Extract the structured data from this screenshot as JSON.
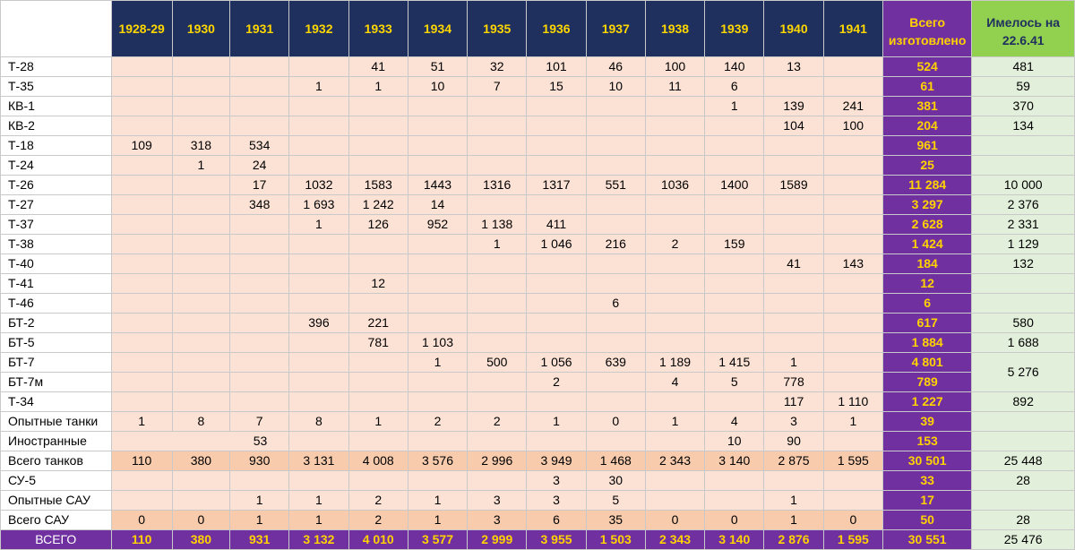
{
  "table": {
    "header_years": [
      "1928-29",
      "1930",
      "1931",
      "1932",
      "1933",
      "1934",
      "1935",
      "1936",
      "1937",
      "1938",
      "1939",
      "1940",
      "1941"
    ],
    "header_total": [
      "Всего",
      "изготовлено"
    ],
    "header_available": [
      "Имелось на",
      "22.6.41"
    ],
    "rows": [
      {
        "label": "Т-28",
        "cells": [
          "",
          "",
          "",
          "",
          "41",
          "51",
          "32",
          "101",
          "46",
          "100",
          "140",
          "13",
          ""
        ],
        "total": "524",
        "available": "481"
      },
      {
        "label": "Т-35",
        "cells": [
          "",
          "",
          "",
          "1",
          "1",
          "10",
          "7",
          "15",
          "10",
          "11",
          "6",
          "",
          ""
        ],
        "total": "61",
        "available": "59"
      },
      {
        "label": "КВ-1",
        "cells": [
          "",
          "",
          "",
          "",
          "",
          "",
          "",
          "",
          "",
          "",
          "1",
          "139",
          "241"
        ],
        "total": "381",
        "available": "370"
      },
      {
        "label": "КВ-2",
        "cells": [
          "",
          "",
          "",
          "",
          "",
          "",
          "",
          "",
          "",
          "",
          "",
          "104",
          "100"
        ],
        "total": "204",
        "available": "134"
      },
      {
        "label": "Т-18",
        "cells": [
          "109",
          "318",
          "534",
          "",
          "",
          "",
          "",
          "",
          "",
          "",
          "",
          "",
          ""
        ],
        "total": "961",
        "available": ""
      },
      {
        "label": "Т-24",
        "cells": [
          "",
          "1",
          "24",
          "",
          "",
          "",
          "",
          "",
          "",
          "",
          "",
          "",
          ""
        ],
        "total": "25",
        "available": ""
      },
      {
        "label": "Т-26",
        "cells": [
          "",
          "",
          "17",
          "1032",
          "1583",
          "1443",
          "1316",
          "1317",
          "551",
          "1036",
          "1400",
          "1589",
          ""
        ],
        "total": "11 284",
        "available": "10 000"
      },
      {
        "label": "Т-27",
        "cells": [
          "",
          "",
          "348",
          "1 693",
          "1 242",
          "14",
          "",
          "",
          "",
          "",
          "",
          "",
          ""
        ],
        "total": "3 297",
        "available": "2 376"
      },
      {
        "label": "Т-37",
        "cells": [
          "",
          "",
          "",
          "1",
          "126",
          "952",
          "1 138",
          "411",
          "",
          "",
          "",
          "",
          ""
        ],
        "total": "2 628",
        "available": "2 331"
      },
      {
        "label": "Т-38",
        "cells": [
          "",
          "",
          "",
          "",
          "",
          "",
          "1",
          "1 046",
          "216",
          "2",
          "159",
          "",
          ""
        ],
        "total": "1 424",
        "available": "1 129"
      },
      {
        "label": "Т-40",
        "cells": [
          "",
          "",
          "",
          "",
          "",
          "",
          "",
          "",
          "",
          "",
          "",
          "41",
          "143"
        ],
        "total": "184",
        "available": "132"
      },
      {
        "label": "Т-41",
        "cells": [
          "",
          "",
          "",
          "",
          "12",
          "",
          "",
          "",
          "",
          "",
          "",
          "",
          ""
        ],
        "total": "12",
        "available": ""
      },
      {
        "label": "Т-46",
        "cells": [
          "",
          "",
          "",
          "",
          "",
          "",
          "",
          "",
          "6",
          "",
          "",
          "",
          ""
        ],
        "total": "6",
        "available": ""
      },
      {
        "label": "БТ-2",
        "cells": [
          "",
          "",
          "",
          "396",
          "221",
          "",
          "",
          "",
          "",
          "",
          "",
          "",
          ""
        ],
        "total": "617",
        "available": "580"
      },
      {
        "label": "БТ-5",
        "cells": [
          "",
          "",
          "",
          "",
          "781",
          "1 103",
          "",
          "",
          "",
          "",
          "",
          "",
          ""
        ],
        "total": "1 884",
        "available": "1 688"
      },
      {
        "label": "БТ-7",
        "cells": [
          "",
          "",
          "",
          "",
          "",
          "1",
          "500",
          "1 056",
          "639",
          "1 189",
          "1 415",
          "1",
          ""
        ],
        "total": "4 801",
        "available": "5 276"
      },
      {
        "label": "БТ-7м",
        "cells": [
          "",
          "",
          "",
          "",
          "",
          "",
          "",
          "2",
          "",
          "4",
          "5",
          "778",
          ""
        ],
        "total": "789",
        "available": null
      },
      {
        "label": "Т-34",
        "cells": [
          "",
          "",
          "",
          "",
          "",
          "",
          "",
          "",
          "",
          "",
          "",
          "117",
          "1 110"
        ],
        "total": "1 227",
        "available": "892"
      },
      {
        "label": "Опытные танки",
        "cells": [
          "1",
          "8",
          "7",
          "8",
          "1",
          "2",
          "2",
          "1",
          "0",
          "1",
          "4",
          "3",
          "1"
        ],
        "total": "39",
        "available": ""
      },
      {
        "label": "Иностранные",
        "span_text": "53",
        "cells": [
          "",
          "",
          "",
          "",
          "",
          "",
          "",
          "",
          "",
          "",
          "10",
          "90",
          ""
        ],
        "total": "153",
        "available": ""
      },
      {
        "label": "Всего танков",
        "cells": [
          "110",
          "380",
          "930",
          "3 131",
          "4 008",
          "3 576",
          "2 996",
          "3 949",
          "1 468",
          "2 343",
          "3 140",
          "2 875",
          "1 595"
        ],
        "total": "30 501",
        "available": "25 448"
      },
      {
        "label": "СУ-5",
        "cells": [
          "",
          "",
          "",
          "",
          "",
          "",
          "",
          "3",
          "30",
          "",
          "",
          "",
          ""
        ],
        "total": "33",
        "available": "28"
      },
      {
        "label": "Опытные  САУ",
        "cells": [
          "",
          "",
          "1",
          "1",
          "2",
          "1",
          "3",
          "3",
          "5",
          "",
          "",
          "1",
          ""
        ],
        "total": "17",
        "available": ""
      },
      {
        "label": "Всего САУ",
        "cells": [
          "0",
          "0",
          "1",
          "1",
          "2",
          "1",
          "3",
          "6",
          "35",
          "0",
          "0",
          "1",
          "0"
        ],
        "total": "50",
        "available": "28"
      },
      {
        "label": "ВСЕГО",
        "cells": [
          "110",
          "380",
          "931",
          "3 132",
          "4 010",
          "3 577",
          "2 999",
          "3 955",
          "1 503",
          "2 343",
          "3 140",
          "2 876",
          "1 595"
        ],
        "total": "30 551",
        "available": "25 476"
      }
    ]
  }
}
